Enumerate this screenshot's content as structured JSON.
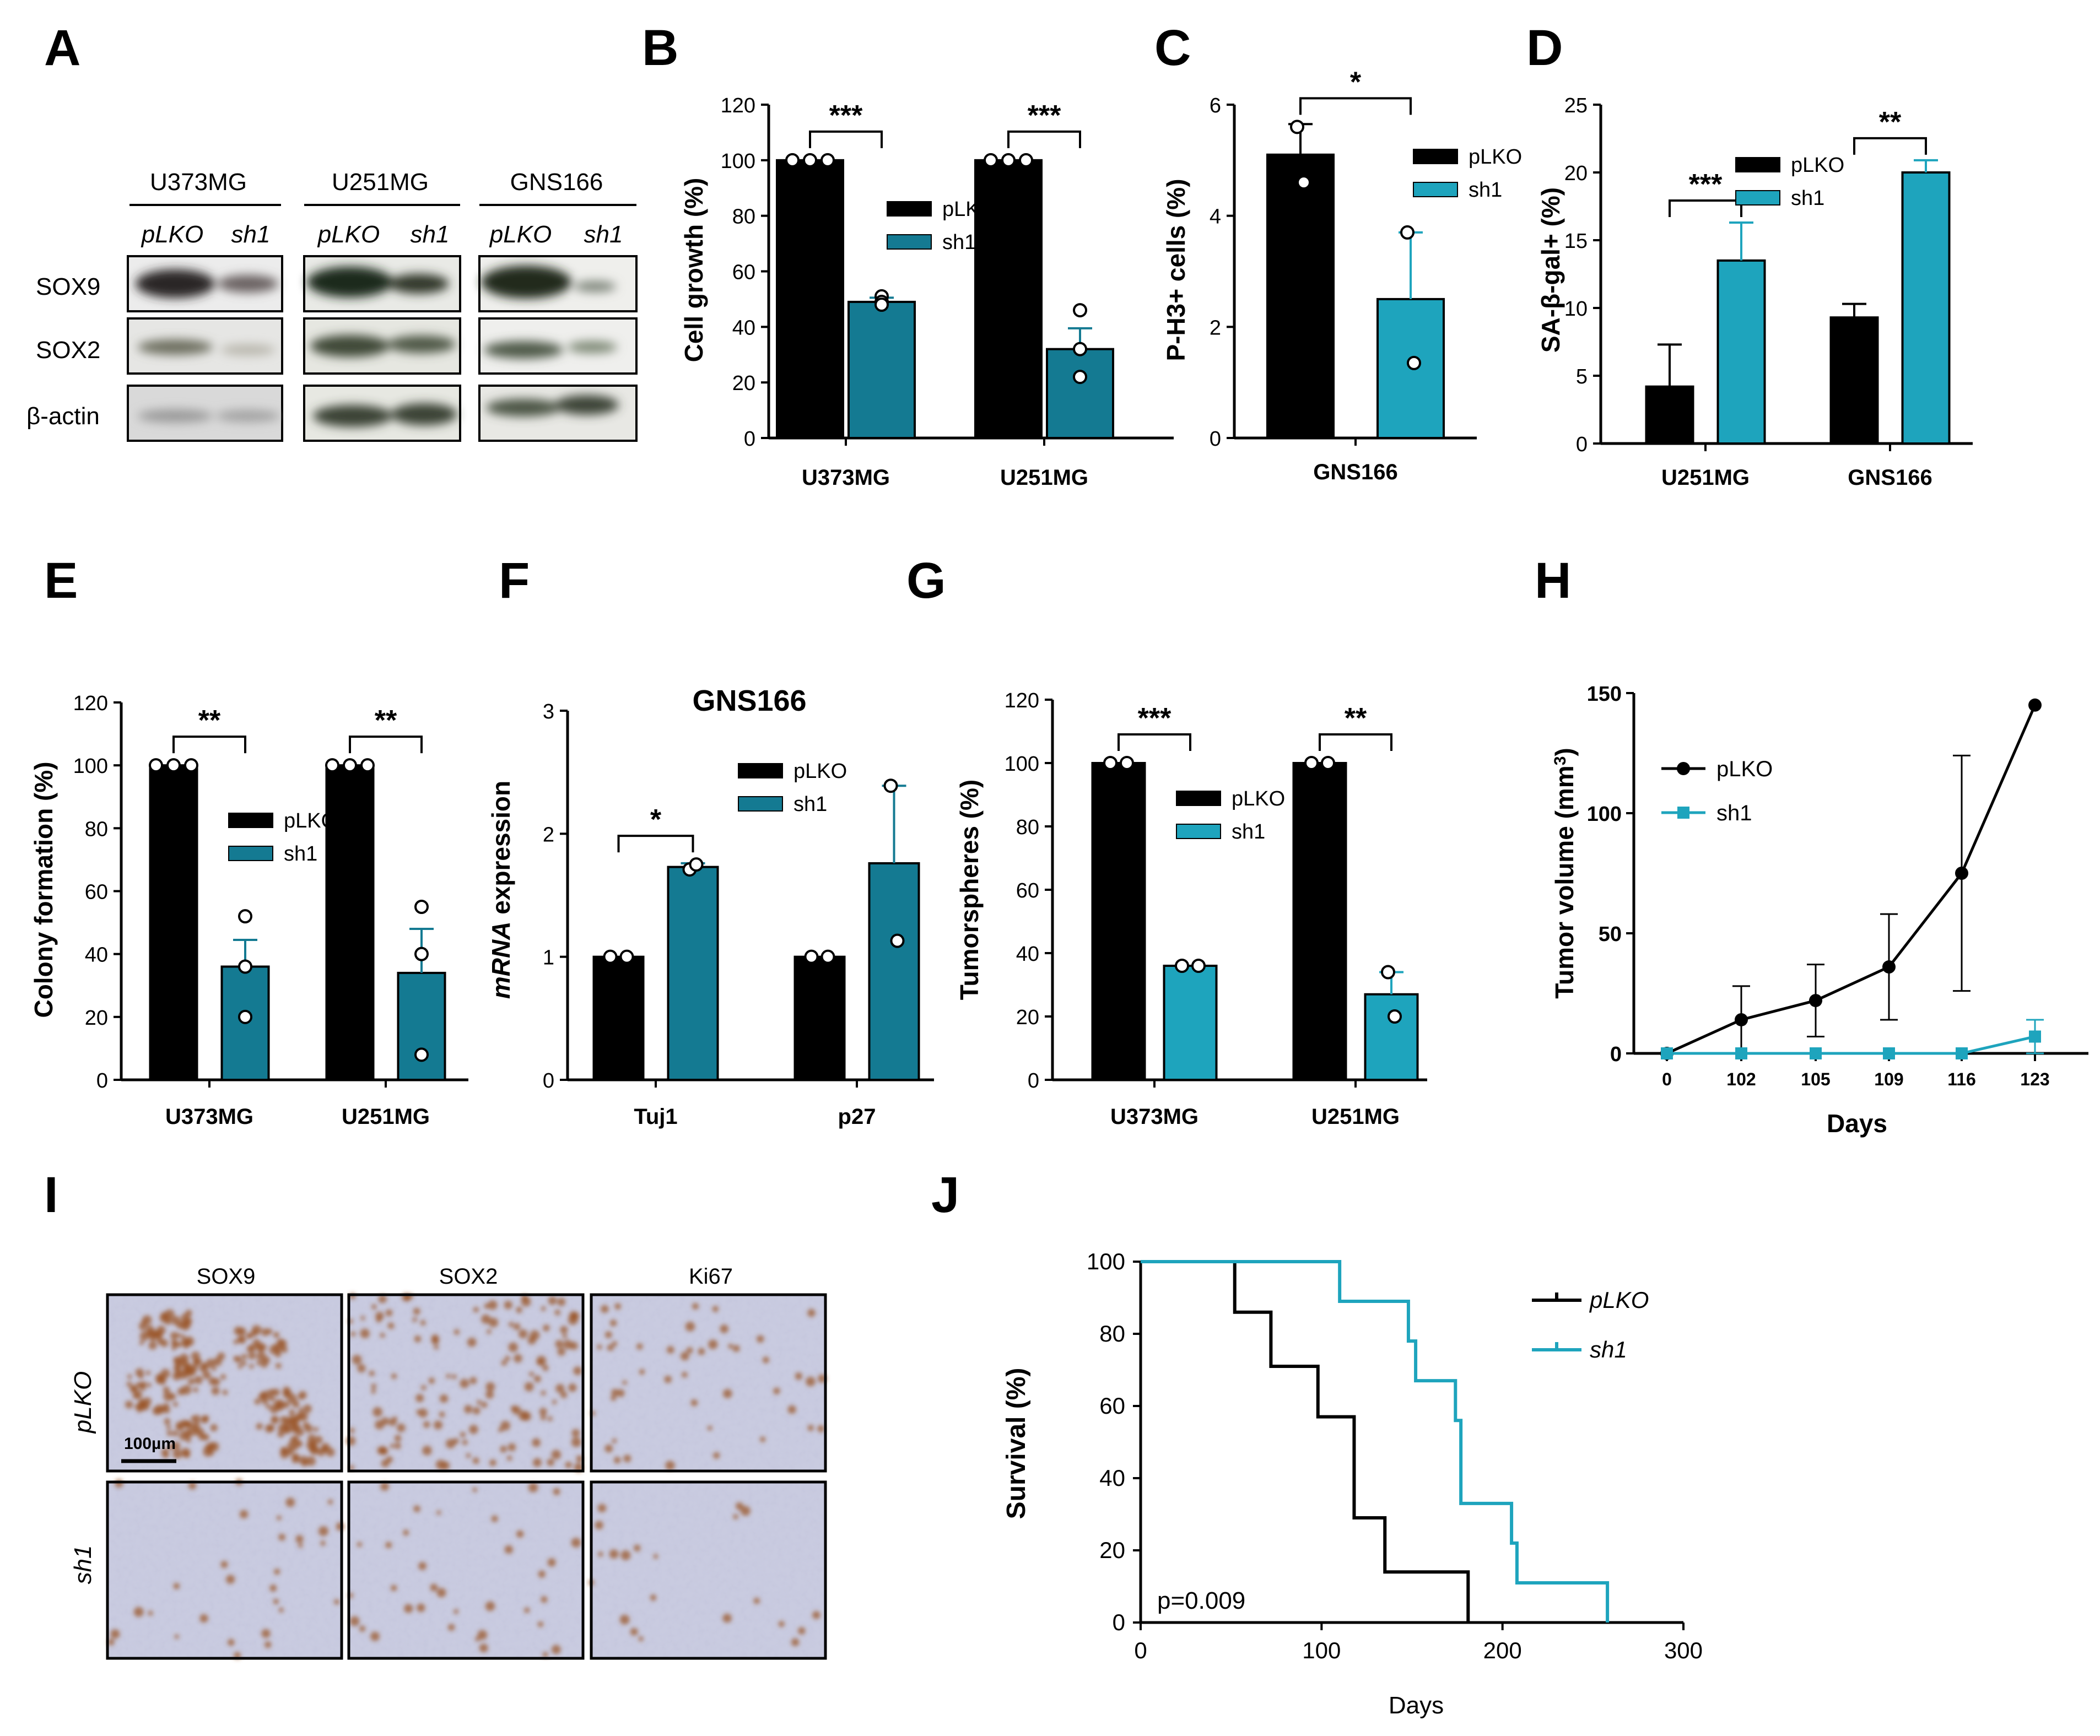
{
  "colors": {
    "pLKO": "#000000",
    "sh1_dark": "#147a92",
    "sh1_light": "#1ea4bd",
    "ihc_bg": "#c9cbe0",
    "ihc_stain": "#9b5528"
  },
  "panel_A": {
    "letter": "A",
    "cell_lines": [
      "U373MG",
      "U251MG",
      "GNS166"
    ],
    "lanes": [
      "pLKO",
      "sh1"
    ],
    "rows": [
      "SOX9",
      "SOX2",
      "β-actin"
    ]
  },
  "chart_data": [
    {
      "panel": "B",
      "type": "bar",
      "categories": [
        "U373MG",
        "U251MG"
      ],
      "series": [
        {
          "name": "pLKO",
          "values": [
            100,
            100
          ],
          "errors": [
            0,
            0
          ],
          "points": [
            [
              100,
              100,
              100
            ],
            [
              100,
              100,
              100
            ]
          ]
        },
        {
          "name": "sh1",
          "values": [
            49,
            32
          ],
          "errors": [
            1.5,
            7.5
          ],
          "points": [
            [
              51,
              49,
              48
            ],
            [
              46,
              32,
              22
            ]
          ]
        }
      ],
      "title": "",
      "xlabel": "",
      "ylabel": "Cell growth (%)",
      "ylim": [
        0,
        120
      ],
      "yticks": [
        "0",
        "20",
        "40",
        "60",
        "80",
        "100",
        "120"
      ],
      "significance": [
        "***",
        "***"
      ],
      "legend": "right"
    },
    {
      "panel": "C",
      "type": "bar",
      "categories": [
        "GNS166"
      ],
      "series": [
        {
          "name": "pLKO",
          "values": [
            5.1
          ],
          "errors": [
            0.55
          ],
          "points": [
            [
              5.6,
              4.6
            ]
          ]
        },
        {
          "name": "sh1",
          "values": [
            2.5
          ],
          "errors": [
            1.2
          ],
          "points": [
            [
              3.7,
              1.35
            ]
          ]
        }
      ],
      "title": "",
      "xlabel": "",
      "ylabel": "P-H3+ cells (%)",
      "ylim": [
        0,
        6
      ],
      "yticks": [
        "0",
        "2",
        "4",
        "6"
      ],
      "significance": [
        "*"
      ],
      "legend": "top-right"
    },
    {
      "panel": "D",
      "type": "bar",
      "categories": [
        "U251MG",
        "GNS166"
      ],
      "series": [
        {
          "name": "pLKO",
          "values": [
            4.2,
            9.3
          ],
          "errors": [
            3.1,
            1.0
          ]
        },
        {
          "name": "sh1",
          "values": [
            13.5,
            20
          ],
          "errors": [
            2.8,
            0.9
          ]
        }
      ],
      "title": "",
      "xlabel": "",
      "ylabel": "SA-β-gal+ (%)",
      "ylim": [
        0,
        25
      ],
      "yticks": [
        "0",
        "5",
        "10",
        "15",
        "20",
        "25"
      ],
      "significance": [
        "***",
        "**"
      ],
      "legend": "top-right"
    },
    {
      "panel": "E",
      "type": "bar",
      "categories": [
        "U373MG",
        "U251MG"
      ],
      "series": [
        {
          "name": "pLKO",
          "values": [
            100,
            100
          ],
          "errors": [
            0,
            0
          ],
          "points": [
            [
              100,
              100,
              100
            ],
            [
              100,
              100,
              100
            ]
          ]
        },
        {
          "name": "sh1",
          "values": [
            36,
            34
          ],
          "errors": [
            8.5,
            14
          ],
          "points": [
            [
              52,
              36,
              20
            ],
            [
              55,
              40,
              8
            ]
          ]
        }
      ],
      "title": "",
      "xlabel": "",
      "ylabel": "Colony formation (%)",
      "ylim": [
        0,
        120
      ],
      "yticks": [
        "0",
        "20",
        "40",
        "60",
        "80",
        "100",
        "120"
      ],
      "significance": [
        "**",
        "**"
      ],
      "legend": "right"
    },
    {
      "panel": "F",
      "type": "bar",
      "categories": [
        "Tuj1",
        "p27"
      ],
      "series": [
        {
          "name": "pLKO",
          "values": [
            1.0,
            1.0
          ],
          "errors": [
            0,
            0
          ],
          "points": [
            [
              1.0,
              1.0
            ],
            [
              1.0,
              1.0
            ]
          ]
        },
        {
          "name": "sh1",
          "values": [
            1.73,
            1.76
          ],
          "errors": [
            0.03,
            0.63
          ],
          "points": [
            [
              1.71,
              1.75
            ],
            [
              2.39,
              1.13
            ]
          ]
        }
      ],
      "title": "GNS166",
      "xlabel": "",
      "ylabel": "mRNA expression",
      "ylim": [
        0,
        3
      ],
      "yticks": [
        "0",
        "1",
        "2",
        "3"
      ],
      "significance": [
        "*"
      ],
      "legend": "top-right"
    },
    {
      "panel": "G",
      "type": "bar",
      "categories": [
        "U373MG",
        "U251MG"
      ],
      "series": [
        {
          "name": "pLKO",
          "values": [
            100,
            100
          ],
          "errors": [
            0,
            0
          ],
          "points": [
            [
              100,
              100
            ],
            [
              100,
              100
            ]
          ]
        },
        {
          "name": "sh1",
          "values": [
            36,
            27
          ],
          "errors": [
            0,
            7
          ],
          "points": [
            [
              36,
              36
            ],
            [
              34,
              20
            ]
          ]
        }
      ],
      "title": "",
      "xlabel": "",
      "ylabel": "Tumorspheres (%)",
      "ylim": [
        0,
        120
      ],
      "yticks": [
        "0",
        "20",
        "40",
        "60",
        "80",
        "100",
        "120"
      ],
      "significance": [
        "***",
        "**"
      ],
      "legend": "right"
    },
    {
      "panel": "H",
      "type": "line",
      "x": [
        "0",
        "102",
        "105",
        "109",
        "116",
        "123"
      ],
      "series": [
        {
          "name": "pLKO",
          "values": [
            0,
            14,
            22,
            36,
            75,
            145
          ],
          "errors": [
            0,
            14,
            15,
            22,
            49,
            0
          ]
        },
        {
          "name": "sh1",
          "values": [
            0,
            0,
            0,
            0,
            0,
            7
          ],
          "errors": [
            0,
            0,
            0,
            0,
            0,
            7
          ]
        }
      ],
      "title": "",
      "xlabel": "Days",
      "ylabel": "Tumor volume (mm3)",
      "ylim": [
        0,
        150
      ],
      "yticks": [
        "0",
        "50",
        "100",
        "150"
      ],
      "legend": "top-left"
    },
    {
      "panel": "J",
      "type": "line",
      "series": [
        {
          "name": "pLKO",
          "steps": [
            [
              0,
              100
            ],
            [
              52,
              100
            ],
            [
              52,
              86
            ],
            [
              72,
              86
            ],
            [
              72,
              71
            ],
            [
              98,
              71
            ],
            [
              98,
              57
            ],
            [
              118,
              57
            ],
            [
              118,
              29
            ],
            [
              135,
              29
            ],
            [
              135,
              14
            ],
            [
              181,
              14
            ],
            [
              181,
              0
            ]
          ]
        },
        {
          "name": "sh1",
          "steps": [
            [
              0,
              100
            ],
            [
              110,
              100
            ],
            [
              110,
              89
            ],
            [
              148,
              89
            ],
            [
              148,
              78
            ],
            [
              152,
              78
            ],
            [
              152,
              67
            ],
            [
              174,
              67
            ],
            [
              174,
              56
            ],
            [
              177,
              56
            ],
            [
              177,
              33
            ],
            [
              205,
              33
            ],
            [
              205,
              22
            ],
            [
              208,
              22
            ],
            [
              208,
              11
            ],
            [
              258,
              11
            ],
            [
              258,
              0
            ]
          ]
        }
      ],
      "title": "",
      "xlabel": "Days",
      "ylabel": "Survival (%)",
      "xlim": [
        0,
        300
      ],
      "ylim": [
        0,
        100
      ],
      "xticks": [
        "0",
        "100",
        "200",
        "300"
      ],
      "yticks": [
        "0",
        "20",
        "40",
        "60",
        "80",
        "100"
      ],
      "annotation": "p=0.009",
      "legend": "top-right"
    }
  ],
  "panel_I": {
    "letter": "I",
    "columns": [
      "SOX9",
      "SOX2",
      "Ki67"
    ],
    "rows": [
      "pLKO",
      "sh1"
    ],
    "scale_bar": "100µm"
  },
  "panel_letters": {
    "B": "B",
    "C": "C",
    "D": "D",
    "E": "E",
    "F": "F",
    "G": "G",
    "H": "H",
    "J": "J"
  }
}
